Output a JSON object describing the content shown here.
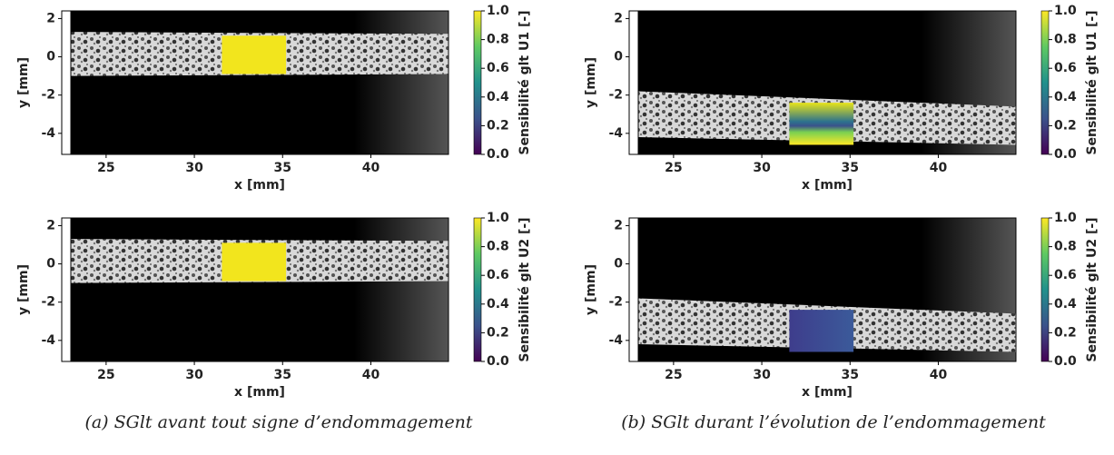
{
  "chart_data": [
    {
      "type": "image",
      "xlabel": "x [mm]",
      "ylabel": "y [mm]",
      "xlim": [
        23,
        44.4
      ],
      "ylim": [
        -5.1,
        2.4
      ],
      "xticks": [
        25,
        30,
        35,
        40
      ],
      "yticks": [
        2,
        0,
        -2,
        -4
      ],
      "colorbar": {
        "label": "Sensibilité glt U1 [-]",
        "clim": [
          0,
          1
        ],
        "ticks": [
          {
            "value": 0,
            "label": "0.0"
          },
          {
            "value": 0.2,
            "label": "0.2"
          },
          {
            "value": 0.4,
            "label": "0.4"
          },
          {
            "value": 0.6,
            "label": "0.6"
          },
          {
            "value": 0.8,
            "label": "0.8"
          },
          {
            "value": 1,
            "label": "1.0"
          }
        ]
      }
    },
    {
      "type": "image",
      "xlabel": "x [mm]",
      "ylabel": "y [mm]",
      "xlim": [
        23,
        44.4
      ],
      "ylim": [
        -5.1,
        2.4
      ],
      "xticks": [
        25,
        30,
        35,
        40
      ],
      "yticks": [
        2,
        0,
        -2,
        -4
      ],
      "colorbar": {
        "label": "Sensibilité glt U2 [-]",
        "clim": [
          0,
          1
        ],
        "ticks": [
          {
            "value": 0,
            "label": "0.0"
          },
          {
            "value": 0.2,
            "label": "0.2"
          },
          {
            "value": 0.4,
            "label": "0.4"
          },
          {
            "value": 0.6,
            "label": "0.6"
          },
          {
            "value": 0.8,
            "label": "0.8"
          },
          {
            "value": 1,
            "label": "1.0"
          }
        ]
      }
    },
    {
      "type": "image",
      "xlabel": "x [mm]",
      "ylabel": "y [mm]",
      "xlim": [
        23,
        44.4
      ],
      "ylim": [
        -5.1,
        2.4
      ],
      "xticks": [
        25,
        30,
        35,
        40
      ],
      "yticks": [
        2,
        0,
        -2,
        -4
      ],
      "colorbar": {
        "label": "Sensibilité glt U1 [-]",
        "clim": [
          0,
          1
        ],
        "ticks": [
          {
            "value": 0,
            "label": "0.0"
          },
          {
            "value": 0.2,
            "label": "0.2"
          },
          {
            "value": 0.4,
            "label": "0.4"
          },
          {
            "value": 0.6,
            "label": "0.6"
          },
          {
            "value": 0.8,
            "label": "0.8"
          },
          {
            "value": 1,
            "label": "1.0"
          }
        ]
      }
    },
    {
      "type": "image",
      "xlabel": "x [mm]",
      "ylabel": "y [mm]",
      "xlim": [
        23,
        44.4
      ],
      "ylim": [
        -5.1,
        2.4
      ],
      "xticks": [
        25,
        30,
        35,
        40
      ],
      "yticks": [
        2,
        0,
        -2,
        -4
      ],
      "colorbar": {
        "label": "Sensibilité glt U2 [-]",
        "clim": [
          0,
          1
        ],
        "ticks": [
          {
            "value": 0,
            "label": "0.0"
          },
          {
            "value": 0.2,
            "label": "0.2"
          },
          {
            "value": 0.4,
            "label": "0.4"
          },
          {
            "value": 0.6,
            "label": "0.6"
          },
          {
            "value": 0.8,
            "label": "0.8"
          },
          {
            "value": 1,
            "label": "1.0"
          }
        ]
      }
    }
  ],
  "captions": [
    "(a) SGlt avant tout signe d’endommagement",
    "(b) SGlt durant l’évolution de l’endommagement"
  ]
}
